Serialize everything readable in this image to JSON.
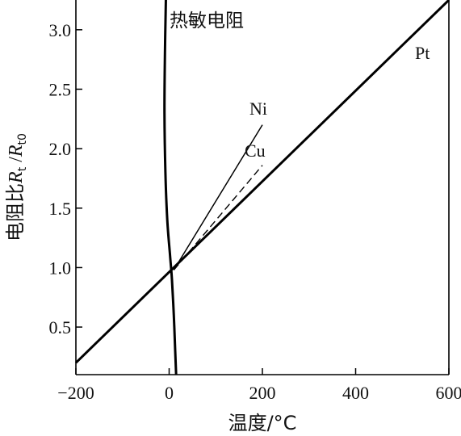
{
  "chart_data": {
    "type": "line",
    "xlabel": "温度/°C",
    "ylabel": "电阻比R_t / R_t0",
    "ylabel_parts": {
      "prefix": "电阻比",
      "symbol1": "R",
      "sub1": "t",
      "slash": " /",
      "symbol2": "R",
      "sub2": "t0"
    },
    "xlim": [
      -200,
      600
    ],
    "ylim": [
      0.1,
      3.25
    ],
    "x_ticks": [
      -200,
      0,
      200,
      400,
      600
    ],
    "x_tick_labels": [
      "−200",
      "0",
      "200",
      "400",
      "600"
    ],
    "y_ticks": [
      0.5,
      1.0,
      1.5,
      2.0,
      2.5,
      3.0
    ],
    "y_tick_labels": [
      "0.5",
      "1.0",
      "1.5",
      "2.0",
      "2.5",
      "3.0"
    ],
    "grid": false,
    "series": [
      {
        "name": "热敏电阻",
        "style": "solid-thick",
        "points": [
          [
            -7,
            3.25
          ],
          [
            -9,
            2.8
          ],
          [
            -10,
            2.3
          ],
          [
            -8,
            1.8
          ],
          [
            -4,
            1.4
          ],
          [
            2,
            1.1
          ],
          [
            6,
            0.9
          ],
          [
            10,
            0.6
          ],
          [
            13,
            0.3
          ],
          [
            15,
            0.1
          ]
        ]
      },
      {
        "name": "Pt",
        "style": "solid-thick",
        "points": [
          [
            -200,
            0.2
          ],
          [
            600,
            3.25
          ]
        ]
      },
      {
        "name": "Ni",
        "style": "solid-thin",
        "points": [
          [
            10,
            0.98
          ],
          [
            200,
            2.2
          ]
        ]
      },
      {
        "name": "Cu",
        "style": "dashed",
        "points": [
          [
            10,
            0.98
          ],
          [
            200,
            1.86
          ]
        ]
      }
    ]
  }
}
